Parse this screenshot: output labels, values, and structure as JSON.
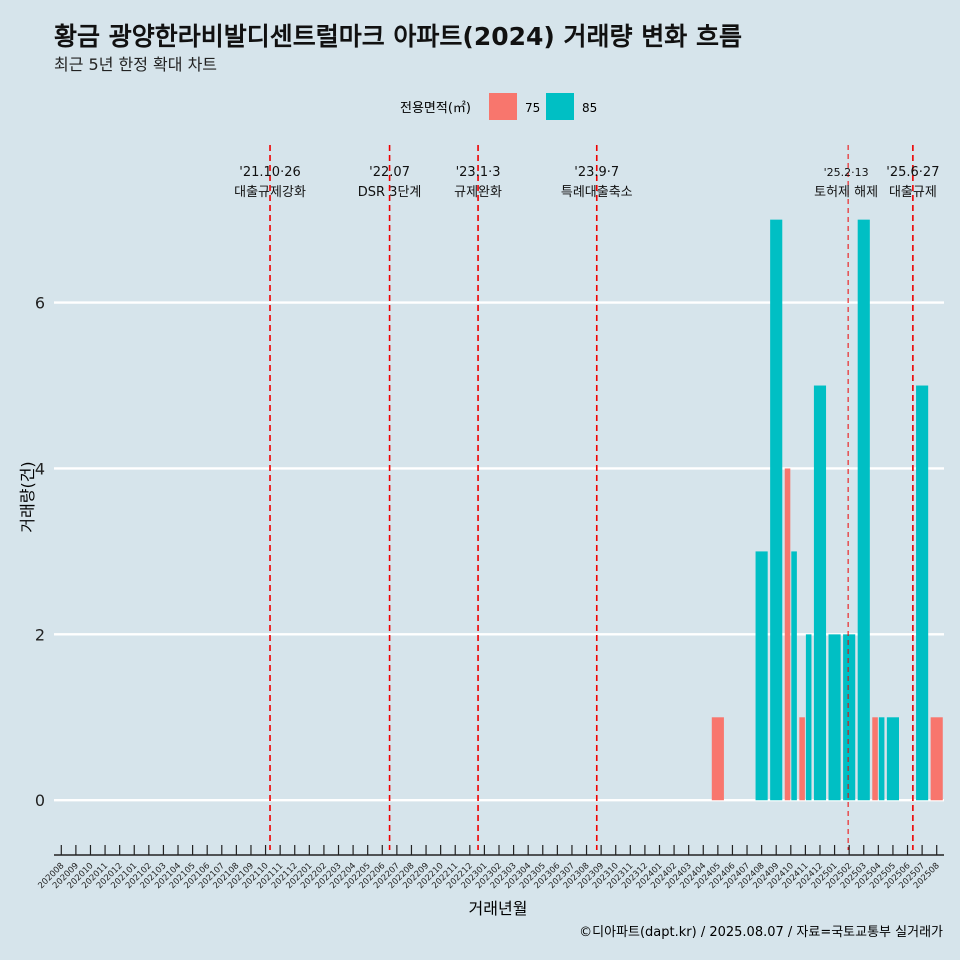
{
  "title": "황금 광양한라비발디센트럴마크 아파트(2024) 거래량 변화 흐름",
  "subtitle": "최근 5년 한정 확대 차트",
  "caption": "©디아파트(dapt.kr) / 2025.08.07 / 자료=국토교통부 실거래가",
  "colors": {
    "75": "#f8766d",
    "85": "#00bfc4",
    "background": "#d6e4eb",
    "gridline": "#ffffff",
    "event_line": "#ee0000"
  },
  "chart_data": {
    "type": "bar",
    "xlabel": "거래년월",
    "ylabel": "거래량(건)",
    "ylim": [
      -0.6,
      7.9
    ],
    "yticks": [
      0,
      2,
      4,
      6
    ],
    "grid": "horizontal",
    "legend": {
      "title": "전용면적(㎡)",
      "placement": "top",
      "entries": [
        "75",
        "85"
      ]
    },
    "categories": [
      "202008",
      "202009",
      "202010",
      "202011",
      "202012",
      "202101",
      "202102",
      "202103",
      "202104",
      "202105",
      "202106",
      "202107",
      "202108",
      "202109",
      "202110",
      "202111",
      "202112",
      "202201",
      "202202",
      "202203",
      "202204",
      "202205",
      "202206",
      "202207",
      "202208",
      "202209",
      "202210",
      "202211",
      "202212",
      "202301",
      "202302",
      "202303",
      "202304",
      "202305",
      "202306",
      "202307",
      "202308",
      "202309",
      "202310",
      "202311",
      "202312",
      "202401",
      "202402",
      "202403",
      "202404",
      "202405",
      "202406",
      "202407",
      "202408",
      "202409",
      "202410",
      "202411",
      "202412",
      "202501",
      "202502",
      "202503",
      "202504",
      "202505",
      "202506",
      "202507",
      "202508"
    ],
    "series": [
      {
        "name": "75",
        "color": "#f8766d",
        "values": [
          0,
          0,
          0,
          0,
          0,
          0,
          0,
          0,
          0,
          0,
          0,
          0,
          0,
          0,
          0,
          0,
          0,
          0,
          0,
          0,
          0,
          0,
          0,
          0,
          0,
          0,
          0,
          0,
          0,
          0,
          0,
          0,
          0,
          0,
          0,
          0,
          0,
          0,
          0,
          0,
          0,
          0,
          0,
          0,
          0,
          1,
          0,
          0,
          0,
          0,
          4,
          1,
          0,
          0,
          0,
          0,
          1,
          0,
          0,
          0,
          1
        ]
      },
      {
        "name": "85",
        "color": "#00bfc4",
        "values": [
          0,
          0,
          0,
          0,
          0,
          0,
          0,
          0,
          0,
          0,
          0,
          0,
          0,
          0,
          0,
          0,
          0,
          0,
          0,
          0,
          0,
          0,
          0,
          0,
          0,
          0,
          0,
          0,
          0,
          0,
          0,
          0,
          0,
          0,
          0,
          0,
          0,
          0,
          0,
          0,
          0,
          0,
          0,
          0,
          0,
          0,
          0,
          0,
          3,
          7,
          3,
          2,
          5,
          2,
          2,
          7,
          1,
          1,
          0,
          5,
          0
        ]
      }
    ],
    "events": [
      {
        "x": "2021-10-26",
        "date_label": "'21.10·26",
        "text": "대출규제강화"
      },
      {
        "x": "2022-07-01",
        "date_label": "'22.07",
        "text": "DSR 3단계"
      },
      {
        "x": "2023-01-03",
        "date_label": "'23.1·3",
        "text": "규제완화"
      },
      {
        "x": "2023-09-07",
        "date_label": "'23.9·7",
        "text": "특례대출축소"
      },
      {
        "x": "2025-02-13",
        "date_label": "'25.2·13",
        "text": "토허제 해제"
      },
      {
        "x": "2025-06-27",
        "date_label": "'25.6·27",
        "text": "대출규제"
      }
    ]
  }
}
